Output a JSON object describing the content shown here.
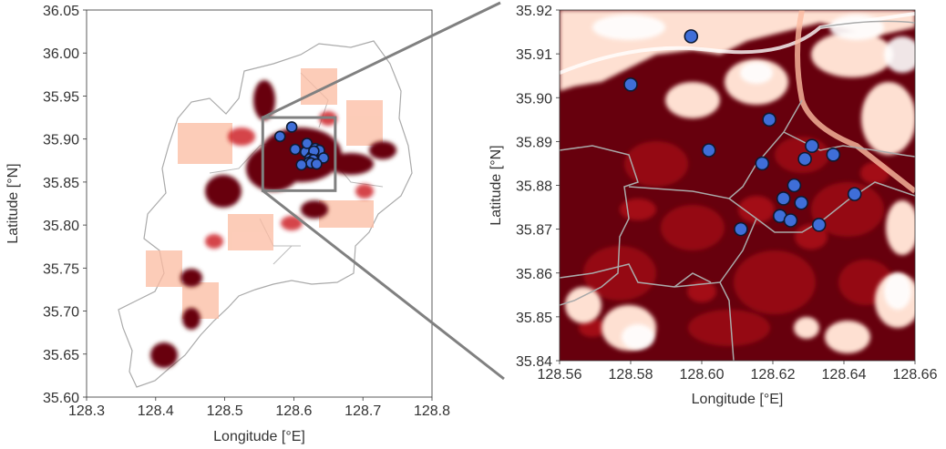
{
  "chart_data": [
    {
      "type": "scatter",
      "panel": "overview",
      "title": "",
      "xlabel": "Longitude [°E]",
      "ylabel": "Latitude [°N]",
      "xlim": [
        128.3,
        128.8
      ],
      "ylim": [
        35.6,
        36.05
      ],
      "xticks": [
        "128.3",
        "128.4",
        "128.5",
        "128.6",
        "128.7",
        "128.8"
      ],
      "yticks": [
        "35.60",
        "35.65",
        "35.70",
        "35.75",
        "35.80",
        "35.85",
        "35.90",
        "35.95",
        "36.00",
        "36.05"
      ],
      "zoom_box": {
        "lon": [
          128.555,
          128.66
        ],
        "lat": [
          35.84,
          35.925
        ]
      },
      "points": [
        {
          "lon": 128.58,
          "lat": 35.903
        },
        {
          "lon": 128.597,
          "lat": 35.914
        },
        {
          "lon": 128.602,
          "lat": 35.888
        },
        {
          "lon": 128.617,
          "lat": 35.885
        },
        {
          "lon": 128.619,
          "lat": 35.895
        },
        {
          "lon": 128.626,
          "lat": 35.88
        },
        {
          "lon": 128.631,
          "lat": 35.889
        },
        {
          "lon": 128.637,
          "lat": 35.887
        },
        {
          "lon": 128.643,
          "lat": 35.878
        },
        {
          "lon": 128.629,
          "lat": 35.886
        },
        {
          "lon": 128.623,
          "lat": 35.877
        },
        {
          "lon": 128.628,
          "lat": 35.876
        },
        {
          "lon": 128.622,
          "lat": 35.873
        },
        {
          "lon": 128.625,
          "lat": 35.872
        },
        {
          "lon": 128.633,
          "lat": 35.871
        },
        {
          "lon": 128.611,
          "lat": 35.87
        }
      ]
    },
    {
      "type": "scatter",
      "panel": "zoom",
      "title": "",
      "xlabel": "Longitude [°E]",
      "ylabel": "Latitude [°N]",
      "xlim": [
        128.56,
        128.66
      ],
      "ylim": [
        35.84,
        35.92
      ],
      "xticks": [
        "128.56",
        "128.58",
        "128.60",
        "128.62",
        "128.64",
        "128.66"
      ],
      "yticks": [
        "35.84",
        "35.85",
        "35.86",
        "35.87",
        "35.88",
        "35.89",
        "35.90",
        "35.91",
        "35.92"
      ],
      "points": [
        {
          "lon": 128.58,
          "lat": 35.903
        },
        {
          "lon": 128.597,
          "lat": 35.914
        },
        {
          "lon": 128.602,
          "lat": 35.888
        },
        {
          "lon": 128.617,
          "lat": 35.885
        },
        {
          "lon": 128.619,
          "lat": 35.895
        },
        {
          "lon": 128.626,
          "lat": 35.88
        },
        {
          "lon": 128.631,
          "lat": 35.889
        },
        {
          "lon": 128.637,
          "lat": 35.887
        },
        {
          "lon": 128.643,
          "lat": 35.878
        },
        {
          "lon": 128.629,
          "lat": 35.886
        },
        {
          "lon": 128.623,
          "lat": 35.877
        },
        {
          "lon": 128.628,
          "lat": 35.876
        },
        {
          "lon": 128.622,
          "lat": 35.873
        },
        {
          "lon": 128.625,
          "lat": 35.872
        },
        {
          "lon": 128.633,
          "lat": 35.871
        },
        {
          "lon": 128.611,
          "lat": 35.87
        }
      ]
    }
  ],
  "colors": {
    "marker_fill": "#3f6ed8",
    "marker_edge": "#0d1a33",
    "heat_dark": "#67000d",
    "heat_mid": "#b2182b",
    "heat_light": "#fcbba1",
    "boundary": "#aaaaaa",
    "zoom_box": "#808080"
  }
}
